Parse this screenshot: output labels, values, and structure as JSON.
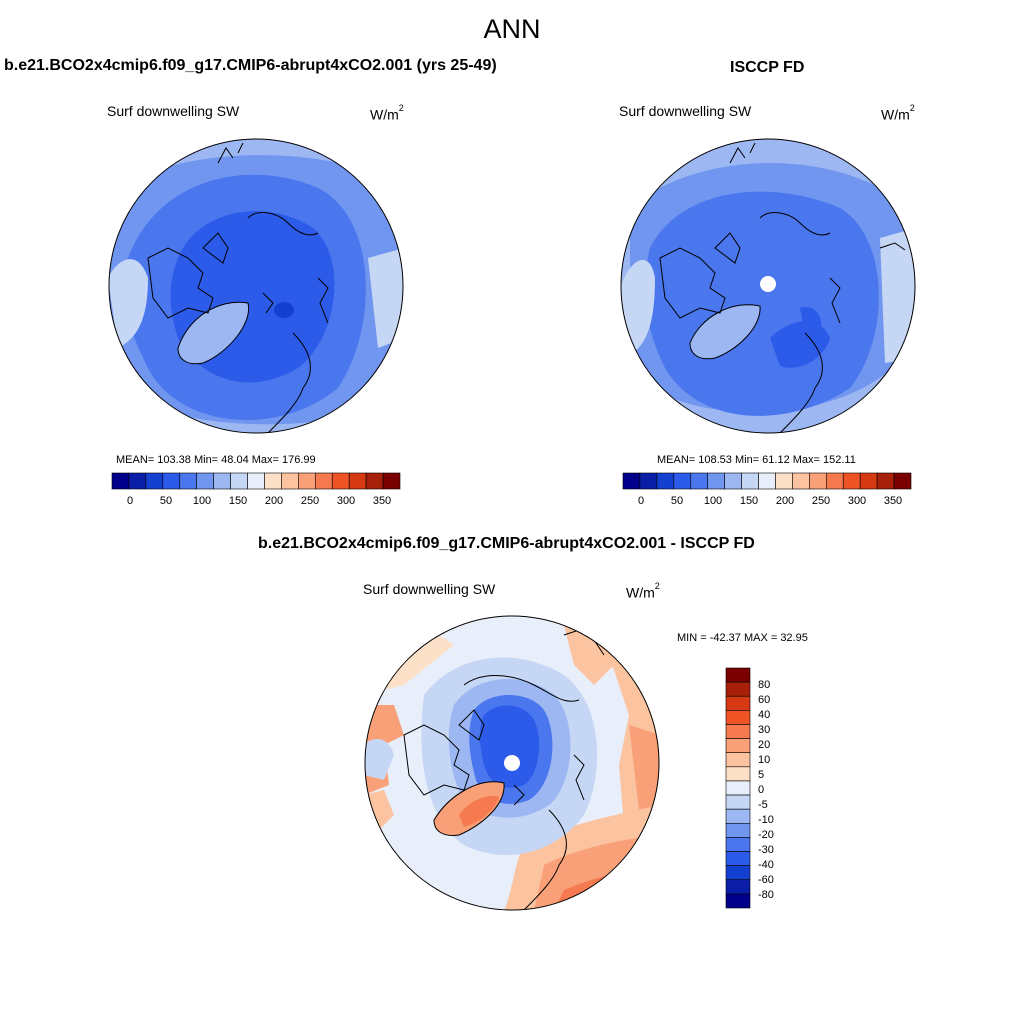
{
  "title": "ANN",
  "panels": [
    {
      "title": "b.e21.BCO2x4cmip6.f09_g17.CMIP6-abrupt4xCO2.001 (yrs 25-49)",
      "variable": "Surf downwelling SW",
      "units_base": "W/m",
      "units_sup": "2",
      "stats": "MEAN= 103.38  Min=  48.04  Max= 176.99",
      "colorbar_labels": [
        "0",
        "50",
        "100",
        "150",
        "200",
        "250",
        "300",
        "350"
      ]
    },
    {
      "title": "ISCCP FD",
      "variable": "Surf downwelling SW",
      "units_base": "W/m",
      "units_sup": "2",
      "stats": "MEAN= 108.53  Min=  61.12  Max= 152.11",
      "colorbar_labels": [
        "0",
        "50",
        "100",
        "150",
        "200",
        "250",
        "300",
        "350"
      ]
    },
    {
      "title": "b.e21.BCO2x4cmip6.f09_g17.CMIP6-abrupt4xCO2.001 - ISCCP FD",
      "variable": "Surf downwelling SW",
      "units_base": "W/m",
      "units_sup": "2",
      "stats": "MIN = -42.37 MAX =  32.95",
      "colorbar_labels": [
        "80",
        "60",
        "40",
        "30",
        "20",
        "10",
        "5",
        "0",
        "-5",
        "-10",
        "-20",
        "-30",
        "-40",
        "-60",
        "-80"
      ]
    }
  ],
  "colors": {
    "cmap": [
      "#00008b",
      "#0a1ea8",
      "#1440d0",
      "#2b5be8",
      "#4a76ee",
      "#7196f0",
      "#9cb7f2",
      "#c6d6f5",
      "#e8eefa",
      "#fde0c8",
      "#fcc3a0",
      "#f9a079",
      "#f67a50",
      "#ef5426",
      "#d63a12",
      "#a8200a",
      "#7a0000"
    ],
    "ocean_deep": "#2b5be8",
    "ocean_mid": "#4a76ee",
    "ocean_light": "#7196f0",
    "land_light": "#9cb7f2",
    "pale": "#c6d6f5"
  }
}
